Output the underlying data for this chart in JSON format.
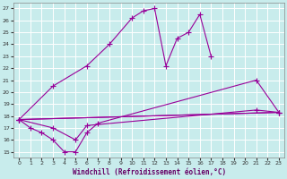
{
  "xlabel": "Windchill (Refroidissement éolien,°C)",
  "bg_color": "#c8ecec",
  "grid_color": "#ffffff",
  "line_color": "#990099",
  "xlim": [
    -0.5,
    23.5
  ],
  "ylim": [
    14.5,
    27.5
  ],
  "xticks": [
    0,
    1,
    2,
    3,
    4,
    5,
    6,
    7,
    8,
    9,
    10,
    11,
    12,
    13,
    14,
    15,
    16,
    17,
    18,
    19,
    20,
    21,
    22,
    23
  ],
  "yticks": [
    15,
    16,
    17,
    18,
    19,
    20,
    21,
    22,
    23,
    24,
    25,
    26,
    27
  ],
  "series": [
    {
      "x": [
        0,
        1,
        2,
        3,
        4,
        5,
        6,
        7,
        21,
        23
      ],
      "y": [
        17.7,
        17.0,
        16.6,
        16.0,
        15.0,
        15.0,
        16.6,
        17.4,
        21.0,
        18.3
      ]
    },
    {
      "x": [
        0,
        3,
        5,
        6,
        21,
        23
      ],
      "y": [
        17.7,
        17.0,
        16.0,
        17.2,
        18.5,
        18.3
      ]
    },
    {
      "x": [
        0,
        23
      ],
      "y": [
        17.7,
        18.3
      ]
    },
    {
      "x": [
        0,
        23
      ],
      "y": [
        17.7,
        18.3
      ]
    },
    {
      "x": [
        0,
        3,
        6,
        8,
        10,
        11,
        12,
        13,
        14,
        15,
        16,
        17
      ],
      "y": [
        17.7,
        20.5,
        22.2,
        24.0,
        26.2,
        26.8,
        27.0,
        22.2,
        24.5,
        25.0,
        26.5,
        23.0
      ]
    }
  ]
}
